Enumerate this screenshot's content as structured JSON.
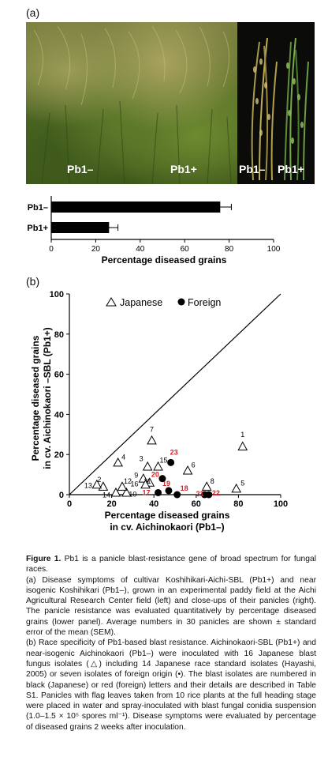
{
  "panel_a": {
    "letter": "(a)",
    "photo_labels": {
      "left_minus": "Pb1–",
      "left_plus": "Pb1+",
      "right_minus": "Pb1–",
      "right_plus": "Pb1+"
    }
  },
  "panel_b": {
    "letter": "(b)"
  },
  "chart_data": [
    {
      "type": "bar",
      "orientation": "horizontal",
      "categories": [
        "Pb1–",
        "Pb1+"
      ],
      "values": [
        76,
        26
      ],
      "error": [
        5,
        4
      ],
      "xlabel": "Percentage diseased grains",
      "ylabel": "",
      "xlim": [
        0,
        100
      ],
      "xticks": [
        "0",
        "20",
        "40",
        "60",
        "80",
        "100"
      ]
    },
    {
      "type": "scatter",
      "xlabel_line1": "Percentage diseased grains",
      "xlabel_line2": "in cv. Aichinokaori (Pb1–)",
      "ylabel_line1": "Percentage diseased grains",
      "ylabel_line2": "in cv. Aichinokaori –SBL (Pb1+)",
      "xlim": [
        0,
        100
      ],
      "ylim": [
        0,
        100
      ],
      "xticks": [
        "0",
        "20",
        "40",
        "60",
        "80",
        "100"
      ],
      "yticks": [
        "0",
        "20",
        "40",
        "60",
        "80",
        "100"
      ],
      "diagonal": true,
      "legend": {
        "placement": "top-left",
        "japanese": "Japanese",
        "foreign": "Foreign"
      },
      "series": [
        {
          "name": "Japanese",
          "marker": "open-triangle",
          "points": [
            {
              "label": "1",
              "x": 82,
              "y": 24
            },
            {
              "label": "2",
              "x": 16,
              "y": 4
            },
            {
              "label": "3",
              "x": 37,
              "y": 14
            },
            {
              "label": "4",
              "x": 23,
              "y": 16
            },
            {
              "label": "5",
              "x": 79,
              "y": 3
            },
            {
              "label": "6",
              "x": 56,
              "y": 12
            },
            {
              "label": "7",
              "x": 39,
              "y": 27
            },
            {
              "label": "8",
              "x": 65,
              "y": 4
            },
            {
              "label": "9",
              "x": 35,
              "y": 8
            },
            {
              "label": "10",
              "x": 27,
              "y": 1
            },
            {
              "label": "11",
              "x": 38,
              "y": 6
            },
            {
              "label": "12",
              "x": 25,
              "y": 4
            },
            {
              "label": "13",
              "x": 13,
              "y": 5
            },
            {
              "label": "14",
              "x": 22,
              "y": 1
            },
            {
              "label": "15",
              "x": 42,
              "y": 14
            },
            {
              "label": "16",
              "x": 36,
              "y": 5
            }
          ]
        },
        {
          "name": "Foreign",
          "marker": "filled-circle",
          "points": [
            {
              "label": "17",
              "x": 42,
              "y": 1
            },
            {
              "label": "18",
              "x": 51,
              "y": 0
            },
            {
              "label": "19",
              "x": 47,
              "y": 2
            },
            {
              "label": "20",
              "x": 44,
              "y": 8
            },
            {
              "label": "21",
              "x": 64,
              "y": 0
            },
            {
              "label": "22",
              "x": 66,
              "y": 0
            },
            {
              "label": "23",
              "x": 48,
              "y": 16
            }
          ]
        }
      ]
    }
  ],
  "caption": {
    "title": "Figure 1.",
    "title_rest": " Pb1 is a panicle blast-resistance gene of broad spectrum for fungal races.",
    "para_a": "(a) Disease symptoms of cultivar Koshihikari-Aichi-SBL (Pb1+) and near isogenic Koshihikari (Pb1–), grown in an experimental paddy field at the Aichi Agricultural Research Center field (left) and close-ups of their panicles (right). The panicle resistance was evaluated quantitatively by percentage diseased grains (lower panel). Average numbers in 30 panicles are shown ± standard error of the mean (SEM).",
    "para_b": "(b) Race specificity of Pb1-based blast resistance. Aichinokaori-SBL (Pb1+) and near-isogenic Aichinokaori (Pb1–) were inoculated with 16 Japanese blast fungus isolates (△) including 14 Japanese race standard isolates (Hayashi, 2005) or seven isolates of foreign origin (•). The blast isolates are numbered in black (Japanese) or red (foreign) letters and their details are described in Table S1. Panicles with flag leaves taken from 10 rice plants at the full heading stage were placed in water and spray-inoculated with blast fungal conidia suspension (1.0–1.5 × 10⁵ spores ml⁻¹). Disease symptoms were evaluated by percentage of diseased grains 2 weeks after inoculation."
  },
  "colors": {
    "foreign_label": "#d2232a",
    "bar_fill": "#000000",
    "photo_bg_right": "#0b0b09"
  }
}
